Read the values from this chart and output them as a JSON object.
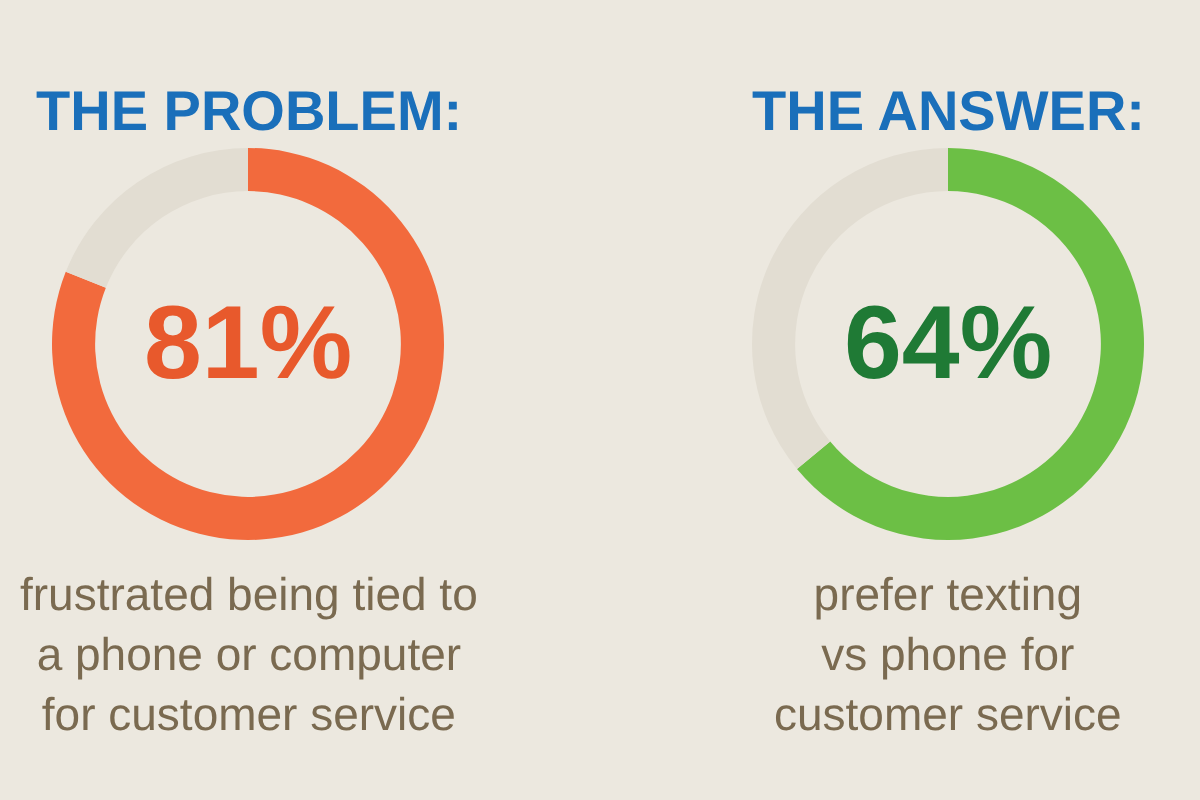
{
  "chart_data": [
    {
      "type": "donut",
      "title": "THE PROBLEM:",
      "categories": [
        null,
        null
      ],
      "values": [
        81,
        19
      ],
      "colors": [
        "#f26a3d",
        "#e2ddd2"
      ],
      "value_labels": [
        "81%",
        null
      ],
      "annotations": [
        "frustrated being tied to\na phone or computer\nfor customer service"
      ]
    },
    {
      "type": "donut",
      "title": "THE ANSWER:",
      "categories": [
        null,
        null
      ],
      "values": [
        64,
        36
      ],
      "colors": [
        "#6cbf45",
        "#e2ddd2"
      ],
      "value_labels": [
        "64%",
        null
      ],
      "annotations": [
        "prefer texting\nvs phone for\ncustomer service"
      ]
    }
  ]
}
